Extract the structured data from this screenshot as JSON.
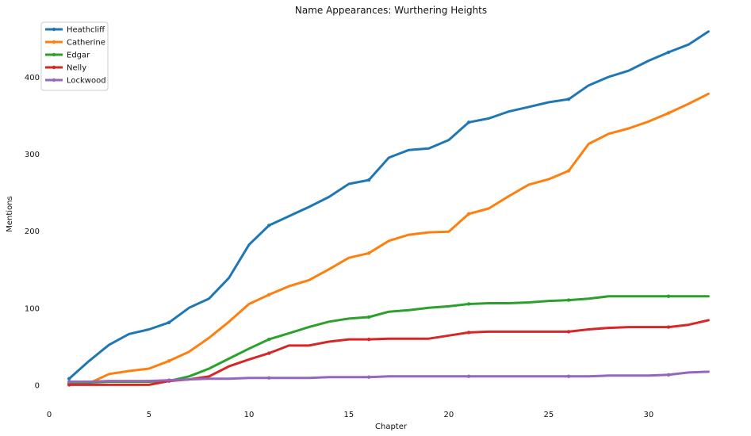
{
  "chart_data": {
    "type": "line",
    "title": "Name Appearances: Wurthering Heights",
    "xlabel": "Chapter",
    "ylabel": "Mentions",
    "xlim": [
      0,
      33.3
    ],
    "ylim": [
      -15,
      470
    ],
    "xticks": [
      0,
      5,
      10,
      15,
      20,
      25,
      30
    ],
    "yticks": [
      0,
      100,
      200,
      300,
      400
    ],
    "grid": false,
    "legend_placement": "top-left",
    "x": [
      1,
      2,
      3,
      4,
      5,
      6,
      7,
      8,
      9,
      10,
      11,
      12,
      13,
      14,
      15,
      16,
      17,
      18,
      19,
      20,
      21,
      22,
      23,
      24,
      25,
      26,
      27,
      28,
      29,
      30,
      31,
      32,
      33
    ],
    "series": [
      {
        "name": "Heathcliff",
        "color": "#1f77b4",
        "values": [
          8,
          31,
          52,
          66,
          72,
          81,
          100,
          112,
          139,
          182,
          207,
          219,
          231,
          244,
          261,
          266,
          295,
          305,
          307,
          318,
          341,
          346,
          355,
          361,
          367,
          371,
          389,
          400,
          408,
          421,
          432,
          442,
          459
        ]
      },
      {
        "name": "Catherine",
        "color": "#ff7f0e",
        "values": [
          1,
          2,
          14,
          18,
          21,
          31,
          43,
          61,
          82,
          105,
          117,
          128,
          136,
          150,
          165,
          171,
          187,
          195,
          198,
          199,
          222,
          229,
          245,
          260,
          267,
          278,
          313,
          326,
          333,
          342,
          353,
          365,
          378
        ]
      },
      {
        "name": "Edgar",
        "color": "#2ca02c",
        "values": [
          2,
          3,
          4,
          4,
          4,
          5,
          11,
          21,
          34,
          47,
          59,
          67,
          75,
          82,
          86,
          88,
          95,
          97,
          100,
          102,
          105,
          106,
          106,
          107,
          109,
          110,
          112,
          115,
          115,
          115,
          115,
          115,
          115
        ]
      },
      {
        "name": "Nelly",
        "color": "#d62728",
        "values": [
          0,
          0,
          0,
          0,
          0,
          5,
          7,
          11,
          24,
          33,
          41,
          51,
          51,
          56,
          59,
          59,
          60,
          60,
          60,
          64,
          68,
          69,
          69,
          69,
          69,
          69,
          72,
          74,
          75,
          75,
          75,
          78,
          84
        ]
      },
      {
        "name": "Lockwood",
        "color": "#9467bd",
        "values": [
          4,
          4,
          5,
          5,
          5,
          6,
          7,
          8,
          8,
          9,
          9,
          9,
          9,
          10,
          10,
          10,
          11,
          11,
          11,
          11,
          11,
          11,
          11,
          11,
          11,
          11,
          11,
          12,
          12,
          12,
          13,
          16,
          17
        ]
      }
    ],
    "markers_at": [
      1,
      6,
      11,
      16,
      21,
      26,
      31
    ]
  }
}
